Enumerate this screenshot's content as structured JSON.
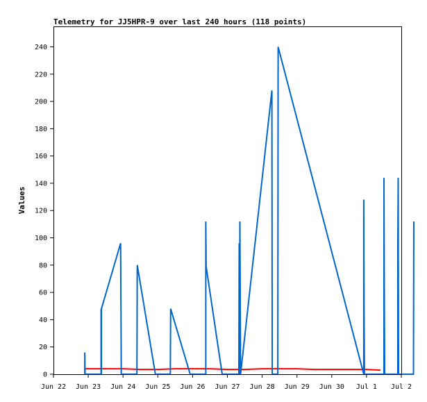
{
  "chart_data": {
    "type": "line",
    "title": "Telemetry for JJ5HPR-9 over last 240 hours (118 points)",
    "xlabel": "",
    "ylabel": "Values",
    "x_ticks": [
      "Jun 22",
      "Jun 23",
      "Jun 24",
      "Jun 25",
      "Jun 26",
      "Jun 27",
      "Jun 28",
      "Jun 29",
      "Jun 30",
      "Jul 1",
      "Jul 2"
    ],
    "xlim": [
      0,
      10
    ],
    "ylim": [
      0,
      255
    ],
    "y_ticks": [
      0,
      20,
      40,
      60,
      80,
      100,
      120,
      140,
      160,
      180,
      200,
      220,
      240
    ],
    "grid": false,
    "legend": "none",
    "series": [
      {
        "color": "#ff0000",
        "x": [
          0.9,
          1.5,
          2.0,
          2.5,
          3.0,
          3.5,
          4.0,
          4.5,
          5.0,
          5.5,
          6.0,
          6.5,
          7.0,
          7.5,
          8.0,
          8.5,
          9.0,
          9.4
        ],
        "y": [
          4,
          4,
          4,
          3.5,
          3.5,
          4,
          4,
          4,
          3.5,
          3.5,
          4,
          4,
          4,
          3.5,
          3.5,
          3.5,
          3.5,
          3
        ]
      },
      {
        "color": "#0066cc",
        "x": [
          0.9,
          0.9,
          0.91,
          1.37,
          1.37,
          1.37,
          1.38,
          1.38,
          1.93,
          1.94,
          1.95,
          2.4,
          2.41,
          2.93,
          2.93,
          3.36,
          3.37,
          3.93,
          3.94,
          4.38,
          4.38,
          4.39,
          4.85,
          5.33,
          5.34,
          5.35,
          5.36,
          5.38,
          6.28,
          6.29,
          6.45,
          6.46,
          8.92,
          8.92,
          8.93,
          8.94,
          9.5,
          9.5,
          9.51,
          9.52,
          9.9,
          9.9,
          9.91,
          9.92,
          10.35,
          10.36
        ],
        "y": [
          0,
          16,
          0,
          0,
          24,
          48,
          0,
          48,
          96,
          49,
          0,
          0,
          80,
          0,
          0,
          0,
          48,
          0,
          0,
          0,
          112,
          79,
          0,
          0,
          96,
          0,
          112,
          0,
          208,
          0,
          0,
          240,
          0,
          128,
          48,
          0,
          0,
          144,
          62,
          0,
          0,
          96,
          144,
          0,
          0,
          112
        ]
      }
    ]
  }
}
